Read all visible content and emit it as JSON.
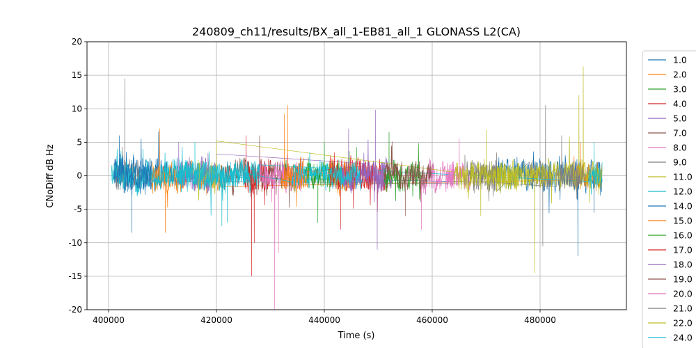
{
  "chart_data": {
    "type": "line",
    "title": "240809_ch11/results/BX_all_1-EB81_all_1 GLONASS L2(CA)",
    "xlabel": "Time (s)",
    "ylabel": "CNoDiff dB Hz",
    "xlim": [
      396000,
      496000
    ],
    "ylim": [
      -20,
      20
    ],
    "xticks": [
      400000,
      420000,
      440000,
      460000,
      480000
    ],
    "yticks": [
      20,
      15,
      10,
      5,
      0,
      -5,
      -10,
      -15,
      -20
    ],
    "grid": true,
    "legend_position": "right, outside plot area",
    "series": [
      {
        "name": "1.0",
        "color": "#1f77b4",
        "segments": [
          [
            401000,
            413000
          ],
          [
            472000,
            491500
          ]
        ],
        "amp": 2.2,
        "spikes": [
          [
            404300,
            -8.5
          ],
          [
            487000,
            -12.0
          ],
          [
            490000,
            -5.5
          ]
        ]
      },
      {
        "name": "2.0",
        "color": "#ff7f0e",
        "segments": [
          [
            408000,
            421000
          ],
          [
            486000,
            491500
          ]
        ],
        "amp": 2.0,
        "spikes": [
          [
            410500,
            -8.5
          ],
          [
            409500,
            7.0
          ],
          [
            487500,
            5.0
          ]
        ]
      },
      {
        "name": "3.0",
        "color": "#2ca02c",
        "segments": [
          [
            432000,
            446000
          ]
        ],
        "amp": 1.8,
        "spikes": [
          [
            438800,
            -7.0
          ],
          [
            440000,
            5.0
          ]
        ]
      },
      {
        "name": "4.0",
        "color": "#d62728",
        "segments": [
          [
            425000,
            430500
          ],
          [
            447000,
            452000
          ]
        ],
        "amp": 2.3,
        "spikes": [
          [
            426500,
            -15.0
          ],
          [
            427000,
            -10.0
          ],
          [
            425500,
            6.0
          ]
        ]
      },
      {
        "name": "5.0",
        "color": "#9467bd",
        "segments": [
          [
            413000,
            420000
          ],
          [
            448000,
            452500
          ]
        ],
        "amp": 2.2,
        "spikes": [
          [
            449800,
            -11.0
          ],
          [
            449500,
            9.8
          ],
          [
            413000,
            5.0
          ]
        ]
      },
      {
        "name": "7.0",
        "color": "#8c564b",
        "segments": [
          [
            421000,
            436000
          ]
        ],
        "amp": 2.0,
        "spikes": [
          [
            428000,
            6.0
          ]
        ]
      },
      {
        "name": "8.0",
        "color": "#e377c2",
        "segments": [
          [
            428000,
            436000
          ],
          [
            458000,
            464000
          ]
        ],
        "amp": 2.0,
        "spikes": [
          [
            430800,
            -20.0
          ],
          [
            431500,
            -11.5
          ],
          [
            458000,
            -8.0
          ]
        ]
      },
      {
        "name": "9.0",
        "color": "#7f7f7f",
        "segments": [
          [
            401000,
            406000
          ],
          [
            467000,
            472000
          ],
          [
            478000,
            482000
          ]
        ],
        "amp": 2.0,
        "spikes": [
          [
            403000,
            14.5
          ],
          [
            480500,
            -10.5
          ],
          [
            481000,
            10.5
          ]
        ]
      },
      {
        "name": "11.0",
        "color": "#bcbd22",
        "segments": [
          [
            416500,
            420000
          ],
          [
            472000,
            491500
          ]
        ],
        "amp": 2.0,
        "spikes": [
          [
            479000,
            -14.5
          ],
          [
            488000,
            16.3
          ],
          [
            487200,
            12.0
          ]
        ]
      },
      {
        "name": "12.0",
        "color": "#17becf",
        "segments": [
          [
            400500,
            428000
          ],
          [
            489000,
            491500
          ]
        ],
        "amp": 1.8,
        "spikes": [
          [
            422000,
            -7.0
          ],
          [
            490000,
            5.0
          ]
        ]
      },
      {
        "name": "14.0",
        "color": "#1f77b4",
        "segments": [
          [
            401000,
            408000
          ]
        ],
        "amp": 1.8,
        "spikes": [
          [
            402000,
            6.0
          ]
        ]
      },
      {
        "name": "15.0",
        "color": "#ff7f0e",
        "segments": [
          [
            432000,
            437000
          ],
          [
            441000,
            446000
          ]
        ],
        "amp": 2.3,
        "spikes": [
          [
            433200,
            10.5
          ],
          [
            432600,
            9.2
          ]
        ]
      },
      {
        "name": "16.0",
        "color": "#2ca02c",
        "segments": [
          [
            451000,
            458000
          ]
        ],
        "amp": 2.0,
        "spikes": [
          [
            452000,
            6.5
          ]
        ]
      },
      {
        "name": "17.0",
        "color": "#d62728",
        "segments": [
          [
            441000,
            449000
          ]
        ],
        "amp": 2.3,
        "spikes": [
          [
            443000,
            -8.0
          ]
        ]
      },
      {
        "name": "18.0",
        "color": "#9467bd",
        "segments": [
          [
            443000,
            451000
          ]
        ],
        "amp": 2.0,
        "spikes": [
          [
            444500,
            7.0
          ]
        ]
      },
      {
        "name": "19.0",
        "color": "#8c564b",
        "segments": [
          [
            451000,
            460000
          ]
        ],
        "amp": 2.0,
        "spikes": [
          [
            455000,
            -6.0
          ]
        ]
      },
      {
        "name": "20.0",
        "color": "#e377c2",
        "segments": [
          [
            463000,
            467000
          ]
        ],
        "amp": 1.8,
        "spikes": [
          [
            465000,
            5.5
          ]
        ]
      },
      {
        "name": "21.0",
        "color": "#7f7f7f",
        "segments": [
          [
            466000,
            472000
          ],
          [
            483000,
            488000
          ]
        ],
        "amp": 2.0,
        "spikes": [
          [
            484000,
            6.0
          ]
        ]
      },
      {
        "name": "22.0",
        "color": "#bcbd22",
        "segments": [
          [
            464000,
            476000
          ]
        ],
        "amp": 1.8,
        "spikes": [
          [
            470000,
            6.8
          ],
          [
            469000,
            -6.0
          ]
        ]
      },
      {
        "name": "24.0",
        "color": "#17becf",
        "segments": [
          [
            413000,
            426000
          ],
          [
            434000,
            447000
          ]
        ],
        "amp": 1.6,
        "spikes": [
          [
            421000,
            -7.5
          ],
          [
            416000,
            5.0
          ]
        ]
      }
    ]
  }
}
